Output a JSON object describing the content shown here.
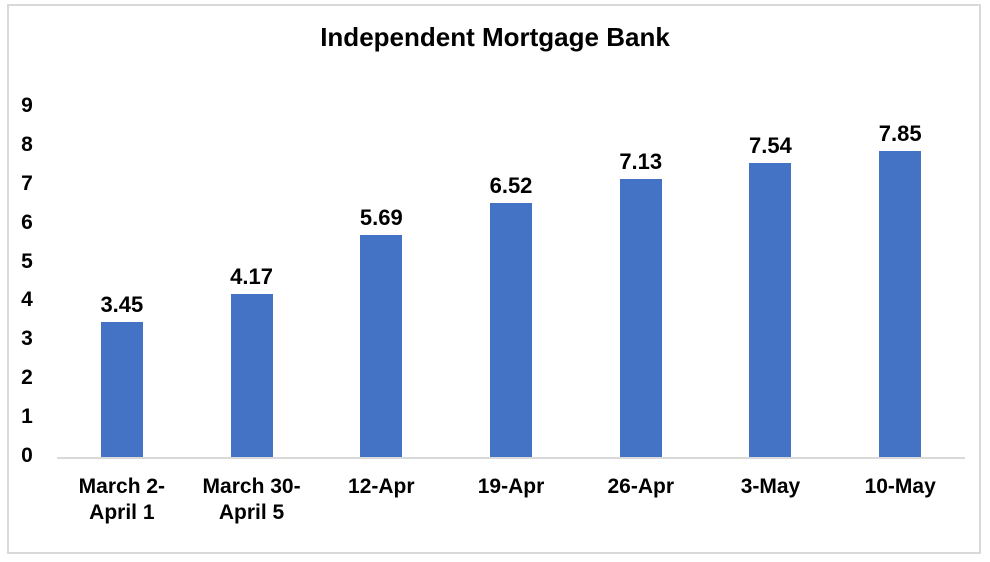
{
  "chart_data": {
    "type": "bar",
    "title": "Independent Mortgage Bank",
    "categories": [
      "March 2-\nApril 1",
      "March 30-\nApril 5",
      "12-Apr",
      "19-Apr",
      "26-Apr",
      "3-May",
      "10-May"
    ],
    "values": [
      3.45,
      4.17,
      5.69,
      6.52,
      7.13,
      7.54,
      7.85
    ],
    "data_labels": [
      "3.45",
      "4.17",
      "5.69",
      "6.52",
      "7.13",
      "7.54",
      "7.85"
    ],
    "xlabel": "",
    "ylabel": "",
    "ylim": [
      0,
      9
    ],
    "y_ticks": [
      "9",
      "8",
      "7",
      "6",
      "5",
      "4",
      "3",
      "2",
      "1",
      "0"
    ],
    "grid": false,
    "legend": false,
    "bar_color": "#4472C4",
    "axis_line_color": "#D9D9D9",
    "frame_border_color": "#D9D9D9",
    "text_color": "#000000"
  }
}
